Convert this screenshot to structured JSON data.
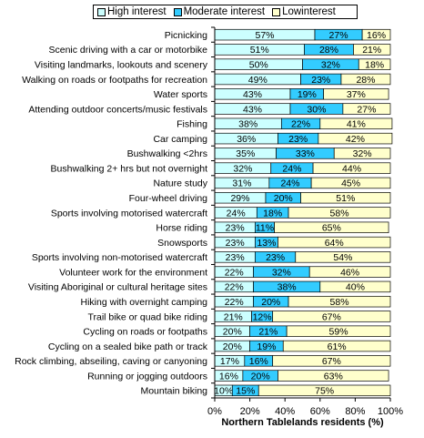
{
  "chart_data": {
    "type": "bar",
    "orientation": "horizontal",
    "stacked": "percent",
    "xlabel": "Northern Tablelands residents (%)",
    "xlim": [
      0,
      100
    ],
    "xticks": [
      "0%",
      "20%",
      "40%",
      "60%",
      "80%",
      "100%"
    ],
    "grid": false,
    "legend_position": "top",
    "categories": [
      "Picnicking",
      "Scenic driving with a car or motorbike",
      "Visiting landmarks, lookouts and scenery",
      "Walking on roads or footpaths for recreation",
      "Water sports",
      "Attending outdoor concerts/music festivals",
      "Fishing",
      "Car camping",
      "Bushwalking <2hrs",
      "Bushwalking 2+ hrs but not overnight",
      "Nature study",
      "Four-wheel driving",
      "Sports involving motorised watercraft",
      "Horse riding",
      "Snowsports",
      "Sports involving non-motorised watercraft",
      "Volunteer work for the environment",
      "Visiting Aboriginal or cultural heritage sites",
      "Hiking with overnight camping",
      "Trail bike or quad bike riding",
      "Cycling on roads or footpaths",
      "Cycling on a sealed bike path or track",
      "Rock climbing, abseiling, caving or canyoning",
      "Running or jogging outdoors",
      "Mountain biking"
    ],
    "series": [
      {
        "name": "High interest",
        "color": "#ccffff",
        "values": [
          57,
          51,
          50,
          49,
          43,
          43,
          38,
          36,
          35,
          32,
          31,
          29,
          24,
          23,
          23,
          23,
          22,
          22,
          22,
          21,
          20,
          20,
          17,
          16,
          10
        ]
      },
      {
        "name": "Moderate interest",
        "color": "#33ccff",
        "values": [
          27,
          28,
          32,
          23,
          19,
          30,
          22,
          23,
          33,
          24,
          24,
          20,
          18,
          11,
          13,
          23,
          32,
          38,
          20,
          12,
          21,
          19,
          16,
          20,
          15
        ]
      },
      {
        "name": "Lowinterest",
        "color": "#ffffcc",
        "values": [
          16,
          21,
          18,
          28,
          37,
          27,
          41,
          42,
          32,
          44,
          45,
          51,
          58,
          65,
          64,
          54,
          46,
          40,
          58,
          67,
          59,
          61,
          67,
          63,
          75
        ]
      }
    ]
  }
}
